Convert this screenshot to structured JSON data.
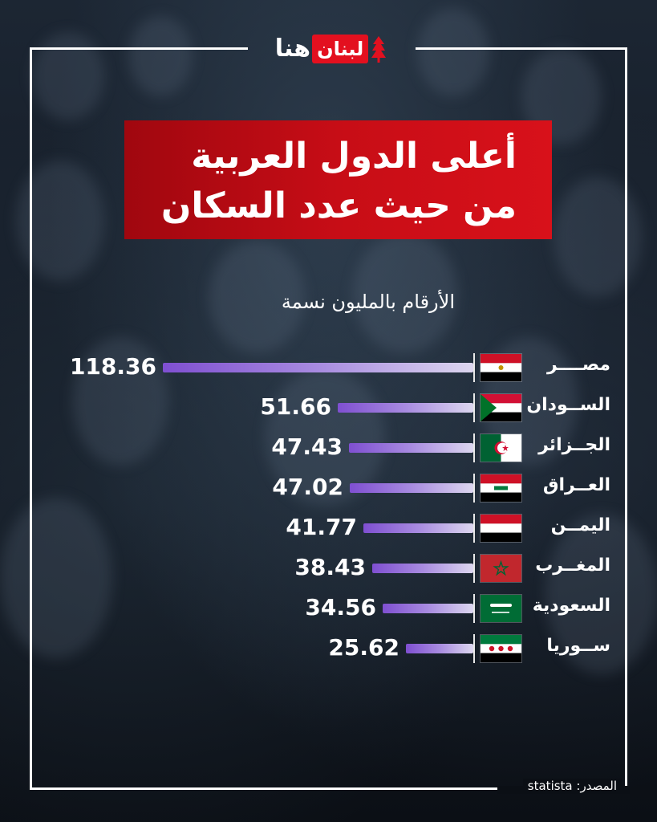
{
  "brand": {
    "logo_text_lubnan": "لبنان",
    "logo_text_huna": "هنا",
    "accent_color": "#e3101f"
  },
  "title_lines": [
    "أعلى الدول العربية",
    "من حيث عدد السكان"
  ],
  "subtitle": "الأرقام بالمليون نسمة",
  "source_label": "المصدر:",
  "source_value": "statista",
  "chart_data": {
    "type": "bar",
    "orientation": "horizontal",
    "title": "أعلى الدول العربية من حيث عدد السكان",
    "unit_note": "الأرقام بالمليون نسمة",
    "categories": [
      "مصــــر",
      "الســودان",
      "الجــزائر",
      "العــراق",
      "اليمــن",
      "المغــرب",
      "السعودية",
      "ســوريا"
    ],
    "values": [
      118.36,
      51.66,
      47.43,
      47.02,
      41.77,
      38.43,
      34.56,
      25.62
    ],
    "value_labels": [
      "118.36",
      "51.66",
      "47.43",
      "47.02",
      "41.77",
      "38.43",
      "34.56",
      "25.62"
    ],
    "flags": [
      "egypt-flag-icon",
      "sudan-flag-icon",
      "algeria-flag-icon",
      "iraq-flag-icon",
      "yemen-flag-icon",
      "morocco-flag-icon",
      "saudi-flag-icon",
      "syria-flag-icon"
    ],
    "bar_colors": [
      "#7f4fd1",
      "#dcd6ef"
    ],
    "grid": false
  }
}
